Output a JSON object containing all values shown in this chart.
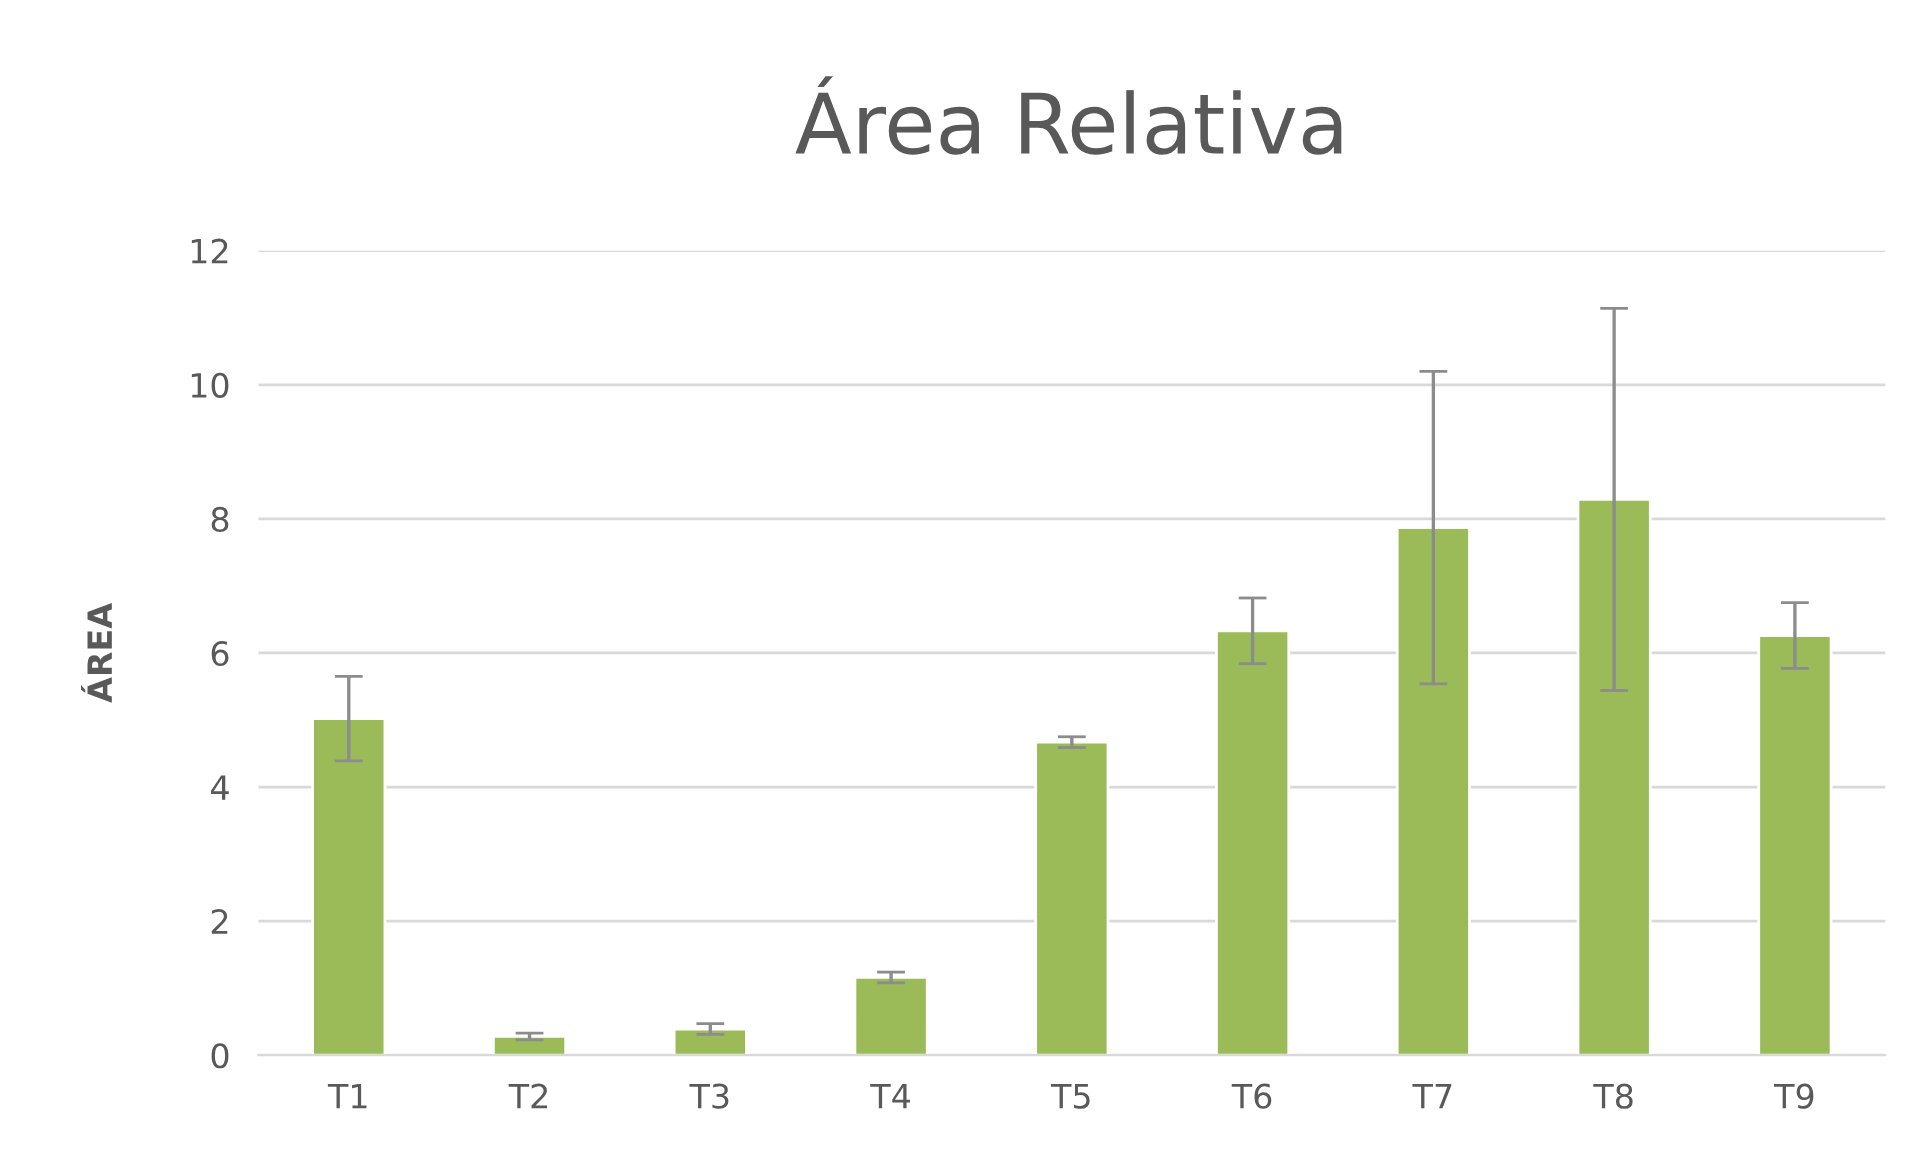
{
  "chart_data": {
    "type": "bar",
    "title": "Área Relativa",
    "ylabel": "ÁREA",
    "categories": [
      "T1",
      "T2",
      "T3",
      "T4",
      "T5",
      "T6",
      "T7",
      "T8",
      "T9"
    ],
    "values": [
      5.02,
      0.28,
      0.39,
      1.16,
      4.67,
      6.33,
      7.87,
      8.29,
      6.26
    ],
    "errors": [
      0.63,
      0.05,
      0.08,
      0.08,
      0.08,
      0.49,
      2.33,
      2.85,
      0.49
    ],
    "color": "#9bbb59",
    "ylim": [
      0,
      12
    ],
    "yticks": [
      0,
      2,
      4,
      6,
      8,
      10,
      12
    ],
    "grid": "y"
  }
}
